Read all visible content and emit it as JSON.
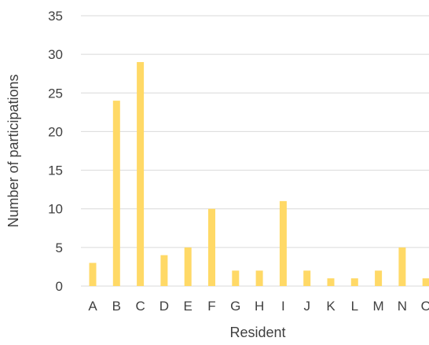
{
  "chart_data": {
    "type": "bar",
    "categories": [
      "A",
      "B",
      "C",
      "D",
      "E",
      "F",
      "G",
      "H",
      "I",
      "J",
      "K",
      "L",
      "M",
      "N",
      "O"
    ],
    "values": [
      3,
      24,
      29,
      4,
      5,
      10,
      2,
      2,
      11,
      2,
      1,
      1,
      2,
      5,
      1
    ],
    "xlabel": "Resident",
    "ylabel": "Number of participations",
    "ylim": [
      0,
      35
    ],
    "yticks": [
      0,
      5,
      10,
      15,
      20,
      25,
      30,
      35
    ],
    "grid": true,
    "bar_color": "#ffd966"
  }
}
